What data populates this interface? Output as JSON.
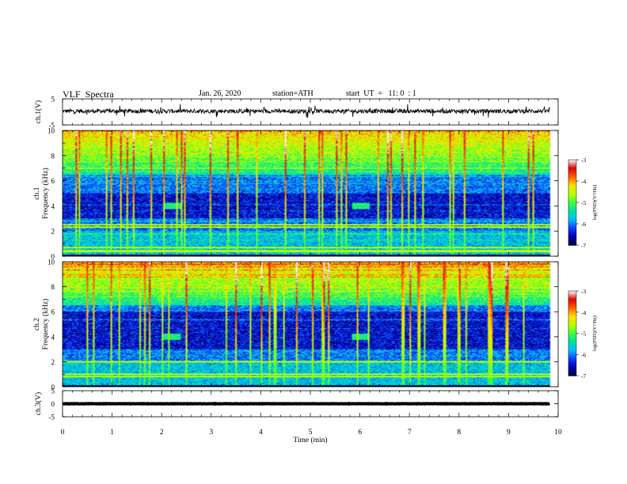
{
  "header": {
    "title": "VLF  Spectra",
    "date": "Jan. 26, 2020",
    "station": "station=ATH",
    "start": "start  UT  =   11: 0  : 1"
  },
  "chart_data": [
    {
      "type": "line",
      "name": "ch1-waveform",
      "ylabel": "ch.1(V)",
      "ylim": [
        -5,
        5
      ],
      "yticks": [
        "5",
        "-5"
      ],
      "x_range_min": [
        0,
        9.83
      ],
      "level": 0.3,
      "noise_amplitude": 0.8,
      "spike_amplitude": 2.2,
      "color": "#000000"
    },
    {
      "type": "heatmap",
      "name": "ch1-spectrogram",
      "ylabel": "ch.1\nFrequency  (kHz)",
      "ylim": [
        0,
        10
      ],
      "yticks": [
        "0",
        "2",
        "4",
        "6",
        "8",
        "10"
      ],
      "x_range_min": [
        0,
        9.83
      ],
      "colorbar": {
        "label": "log(PSD)(V²/Hz)",
        "range": [
          -7,
          -3
        ],
        "ticks": [
          "-3",
          "-4",
          "-5",
          "-6",
          "-7"
        ]
      },
      "quiet_band_khz": [
        3,
        5
      ],
      "bright_lines_khz": [
        0.4,
        0.7,
        2.3,
        2.5
      ],
      "bright_patches": [
        {
          "t_min": 2.2,
          "f_khz": 4.0
        },
        {
          "t_min": 6.0,
          "f_khz": 4.0
        }
      ]
    },
    {
      "type": "heatmap",
      "name": "ch2-spectrogram",
      "ylabel": "ch.2\nFrequency  (kHz)",
      "ylim": [
        0,
        10
      ],
      "yticks": [
        "0",
        "2",
        "4",
        "6",
        "8",
        "10"
      ],
      "x_range_min": [
        0,
        9.83
      ],
      "colorbar": {
        "label": "log(PSD)(V²/Hz)",
        "range": [
          -7,
          -3
        ],
        "ticks": [
          "-3",
          "-4",
          "-5",
          "-6",
          "-7"
        ]
      },
      "quiet_band_khz": [
        3,
        6
      ],
      "bright_lines_khz": [
        0.8,
        1.0,
        2.0
      ],
      "bright_patches": [
        {
          "t_min": 2.2,
          "f_khz": 4.0
        },
        {
          "t_min": 6.0,
          "f_khz": 4.0
        }
      ]
    },
    {
      "type": "line",
      "name": "ch3-waveform",
      "ylabel": "ch.3(V)",
      "ylim": [
        -5,
        5
      ],
      "yticks": [
        "5",
        "0",
        "-5"
      ],
      "x_range_min": [
        0,
        9.83
      ],
      "level": 0,
      "noise_amplitude": 0.05,
      "color": "#000000"
    }
  ],
  "x_axis": {
    "label": "Time  (min)",
    "ticks": [
      "0",
      "1",
      "2",
      "3",
      "4",
      "5",
      "6",
      "7",
      "8",
      "9",
      "10"
    ],
    "range": [
      0,
      10
    ]
  },
  "colormap": [
    "#000040",
    "#0000b0",
    "#1040ff",
    "#00c0ff",
    "#00e0a0",
    "#40ff40",
    "#c0ff00",
    "#ffe000",
    "#ff6000",
    "#e00000",
    "#ffffff"
  ]
}
